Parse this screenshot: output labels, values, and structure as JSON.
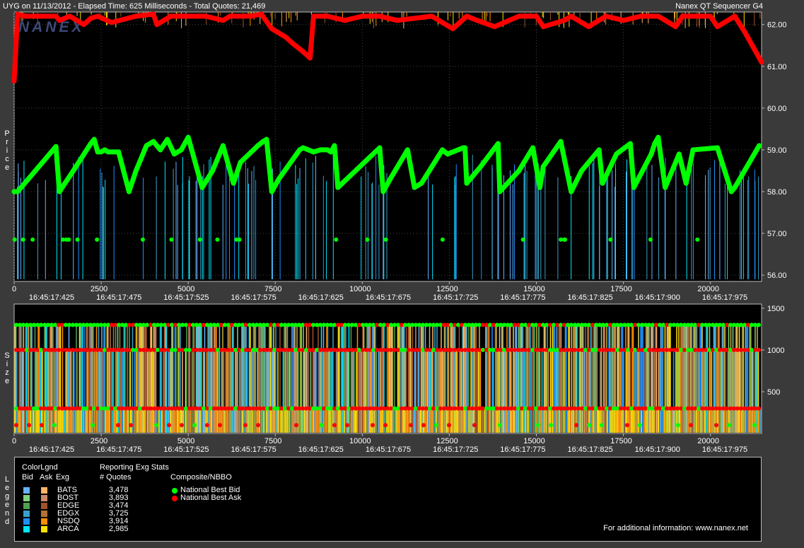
{
  "header": {
    "left": "UYG on 11/13/2012  -  Elapsed Time: 625 Milliseconds  -  Total Quotes: 21,469",
    "right": "Nanex QT Sequencer G4"
  },
  "watermark": "NANEX",
  "side_labels": {
    "price": "Price",
    "size": "Size",
    "legend": "Legend"
  },
  "colors": {
    "bid_line": "#00ff00",
    "ask_line": "#ff0000",
    "bats_bid": "#66b2ff",
    "bats_ask": "#ffb366",
    "bost_bid": "#7fd17f",
    "bost_ask": "#c98a6a",
    "edge_bid": "#4fa04f",
    "edge_ask": "#a0522d",
    "edgx_bid": "#3aa0c8",
    "edgx_ask": "#b0703a",
    "nsdq_bid": "#1e90ff",
    "nsdq_ask": "#ff8c00",
    "arca_bid": "#00e5ff",
    "arca_ask": "#ffe000"
  },
  "chart_data": [
    {
      "type": "line",
      "name": "price",
      "ylabel": "Price",
      "ylim": [
        55.85,
        62.3
      ],
      "xlim": [
        0,
        21469
      ],
      "y_ticks": [
        "56.00",
        "57.00",
        "58.00",
        "59.00",
        "60.00",
        "61.00",
        "62.00"
      ],
      "x_ticks": [
        "0",
        "2500",
        "5000",
        "7500",
        "10000",
        "12500",
        "15000",
        "17500",
        "20000"
      ],
      "time_ticks": [
        "16:45:17:425",
        "16:45:17:475",
        "16:45:17:525",
        "16:45:17:575",
        "16:45:17:625",
        "16:45:17:675",
        "16:45:17:725",
        "16:45:17:775",
        "16:45:17:825",
        "16:45:17:900",
        "16:45:17:975"
      ],
      "series": [
        {
          "name": "National Best Bid",
          "x": [
            0,
            100,
            1200,
            1300,
            1700,
            2200,
            2300,
            2400,
            2500,
            2600,
            2700,
            3000,
            3300,
            3500,
            3800,
            4000,
            4200,
            4400,
            4600,
            4800,
            5000,
            5400,
            5700,
            6000,
            6300,
            6500,
            7000,
            7150,
            7250,
            7400,
            7600,
            8200,
            8300,
            8600,
            8800,
            9000,
            9100,
            9200,
            9300,
            10500,
            10600,
            10800,
            11300,
            11500,
            11700,
            12300,
            12450,
            12900,
            12950,
            13000,
            13400,
            13900,
            13950,
            14500,
            14900,
            15100,
            15200,
            15700,
            16000,
            16300,
            16800,
            16900,
            17300,
            17700,
            17800,
            18300,
            18400,
            18500,
            18700,
            19100,
            19300,
            19500,
            20200,
            20600,
            20700,
            21400
          ],
          "y": [
            58.0,
            58.0,
            59.08,
            58.0,
            58.5,
            59.15,
            59.25,
            58.95,
            58.95,
            59.0,
            58.95,
            58.95,
            58.0,
            58.5,
            59.1,
            59.2,
            59.0,
            59.25,
            58.9,
            59.0,
            59.3,
            58.1,
            58.5,
            59.1,
            58.2,
            58.7,
            59.1,
            59.2,
            59.25,
            58.0,
            58.3,
            59.0,
            59.05,
            58.95,
            59.0,
            59.0,
            58.95,
            59.1,
            58.1,
            59.05,
            58.0,
            58.3,
            59.0,
            58.1,
            58.2,
            59.0,
            58.9,
            59.05,
            59.05,
            58.2,
            58.6,
            59.15,
            58.0,
            58.5,
            59.05,
            58.1,
            58.6,
            59.2,
            58.0,
            58.5,
            59.0,
            58.2,
            58.9,
            59.15,
            58.1,
            58.9,
            59.15,
            59.3,
            58.1,
            58.9,
            58.2,
            59.0,
            59.05,
            58.0,
            58.1,
            59.1
          ]
        },
        {
          "name": "National Best Ask",
          "x": [
            0,
            100,
            300,
            1200,
            1300,
            1600,
            2000,
            2200,
            2400,
            2800,
            3500,
            4000,
            4100,
            4500,
            5000,
            5500,
            6000,
            6200,
            6800,
            7100,
            7400,
            7500,
            7800,
            8000,
            8300,
            8500,
            8600,
            8800,
            9000,
            9500,
            10000,
            10500,
            11000,
            12000,
            12600,
            13000,
            13300,
            13800,
            14500,
            15000,
            15200,
            15800,
            16000,
            16500,
            17000,
            17500,
            18000,
            18500,
            19000,
            19200,
            20000,
            20200,
            20700,
            21000,
            21469
          ],
          "y": [
            60.65,
            62.25,
            62.2,
            62.2,
            62.1,
            62.2,
            62.0,
            62.15,
            62.2,
            62.05,
            62.2,
            62.25,
            62.0,
            62.2,
            62.2,
            62.2,
            62.1,
            62.2,
            62.2,
            62.25,
            61.9,
            61.85,
            61.7,
            61.55,
            61.35,
            61.2,
            62.2,
            62.2,
            62.2,
            62.1,
            62.2,
            62.2,
            62.1,
            62.2,
            61.9,
            62.2,
            62.1,
            61.95,
            62.2,
            62.2,
            61.95,
            62.1,
            62.2,
            61.95,
            62.2,
            62.1,
            62.2,
            62.2,
            61.95,
            62.2,
            62.2,
            61.95,
            62.2,
            61.8,
            61.1
          ]
        }
      ]
    },
    {
      "type": "bar",
      "name": "size",
      "ylabel": "Size",
      "ylim": [
        0,
        1550
      ],
      "xlim": [
        0,
        21469
      ],
      "y_ticks": [
        "500",
        "1000",
        "1500"
      ],
      "x_ticks": [
        "0",
        "2500",
        "5000",
        "7500",
        "10000",
        "12500",
        "15000",
        "17500",
        "20000"
      ],
      "time_ticks": [
        "16:45:17:425",
        "16:45:17:475",
        "16:45:17:525",
        "16:45:17:575",
        "16:45:17:625",
        "16:45:17:675",
        "16:45:17:725",
        "16:45:17:775",
        "16:45:17:825",
        "16:45:17:900",
        "16:45:17:975"
      ],
      "levels": [
        1300,
        1000,
        300,
        100
      ]
    }
  ],
  "legend": {
    "color_legend_title": "ColorLgnd",
    "col_bid": "Bid",
    "col_ask": "Ask",
    "col_exg": "Exg",
    "stats_title": "Reporting Exg Stats",
    "stats_sub": "# Quotes",
    "composite_title": "Composite/NBBO",
    "exchanges": [
      {
        "name": "BATS",
        "quotes": "3,478"
      },
      {
        "name": "BOST",
        "quotes": "3,893"
      },
      {
        "name": "EDGE",
        "quotes": "3,474"
      },
      {
        "name": "EDGX",
        "quotes": "3,725"
      },
      {
        "name": "NSDQ",
        "quotes": "3,914"
      },
      {
        "name": "ARCA",
        "quotes": "2,985"
      }
    ],
    "nbbo": [
      "National Best Bid",
      "National Best Ask"
    ],
    "footer": "For additional information: www.nanex.net"
  }
}
